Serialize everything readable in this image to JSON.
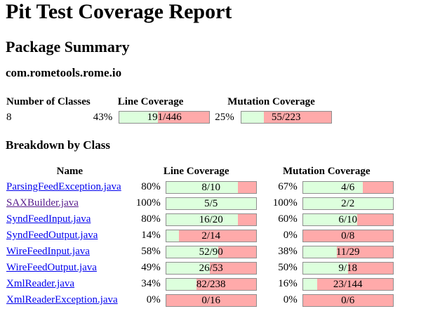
{
  "title": "Pit Test Coverage Report",
  "section_title": "Package Summary",
  "package_name": "com.rometools.rome.io",
  "summary": {
    "headers": [
      "Number of Classes",
      "Line Coverage",
      "Mutation Coverage"
    ],
    "num_classes": "8",
    "line_pct": "43%",
    "line_label": "191/446",
    "line_ratio": 0.43,
    "mutation_pct": "25%",
    "mutation_label": "55/223",
    "mutation_ratio": 0.25
  },
  "breakdown_title": "Breakdown by Class",
  "class_headers": [
    "Name",
    "Line Coverage",
    "Mutation Coverage"
  ],
  "classes": [
    {
      "name": "ParsingFeedException.java",
      "visited": false,
      "line_pct": "80%",
      "line_label": "8/10",
      "line_ratio": 0.8,
      "mut_pct": "67%",
      "mut_label": "4/6",
      "mut_ratio": 0.67
    },
    {
      "name": "SAXBuilder.java",
      "visited": true,
      "line_pct": "100%",
      "line_label": "5/5",
      "line_ratio": 1.0,
      "mut_pct": "100%",
      "mut_label": "2/2",
      "mut_ratio": 1.0
    },
    {
      "name": "SyndFeedInput.java",
      "visited": false,
      "line_pct": "80%",
      "line_label": "16/20",
      "line_ratio": 0.8,
      "mut_pct": "60%",
      "mut_label": "6/10",
      "mut_ratio": 0.6
    },
    {
      "name": "SyndFeedOutput.java",
      "visited": false,
      "line_pct": "14%",
      "line_label": "2/14",
      "line_ratio": 0.14,
      "mut_pct": "0%",
      "mut_label": "0/8",
      "mut_ratio": 0.0
    },
    {
      "name": "WireFeedInput.java",
      "visited": false,
      "line_pct": "58%",
      "line_label": "52/90",
      "line_ratio": 0.58,
      "mut_pct": "38%",
      "mut_label": "11/29",
      "mut_ratio": 0.38
    },
    {
      "name": "WireFeedOutput.java",
      "visited": false,
      "line_pct": "49%",
      "line_label": "26/53",
      "line_ratio": 0.49,
      "mut_pct": "50%",
      "mut_label": "9/18",
      "mut_ratio": 0.5
    },
    {
      "name": "XmlReader.java",
      "visited": false,
      "line_pct": "34%",
      "line_label": "82/238",
      "line_ratio": 0.34,
      "mut_pct": "16%",
      "mut_label": "23/144",
      "mut_ratio": 0.16
    },
    {
      "name": "XmlReaderException.java",
      "visited": false,
      "line_pct": "0%",
      "line_label": "0/16",
      "line_ratio": 0.0,
      "mut_pct": "0%",
      "mut_label": "0/6",
      "mut_ratio": 0.0
    }
  ],
  "colors": {
    "covered": "#ddffdd",
    "uncovered": "#ffaaaa",
    "link": "#0000ee",
    "visited_link": "#551a8b"
  }
}
